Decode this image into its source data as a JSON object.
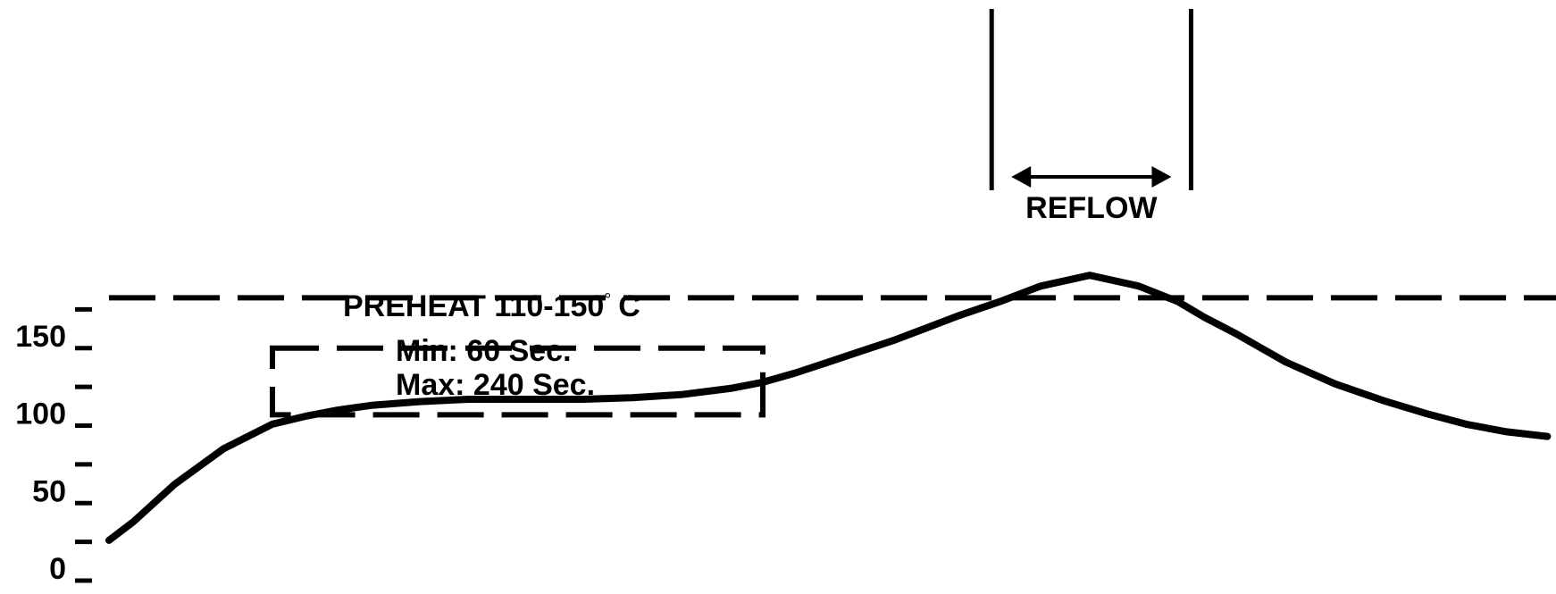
{
  "chart_data": {
    "type": "line",
    "title": "",
    "xlabel": "",
    "ylabel": "",
    "ylim": [
      0,
      190
    ],
    "y_ticks": [
      {
        "value": 0,
        "label": "0"
      },
      {
        "value": 25,
        "label": ""
      },
      {
        "value": 50,
        "label": "50"
      },
      {
        "value": 75,
        "label": ""
      },
      {
        "value": 100,
        "label": "100"
      },
      {
        "value": 125,
        "label": ""
      },
      {
        "value": 150,
        "label": "150"
      },
      {
        "value": 175,
        "label": ""
      }
    ],
    "grid": false,
    "series": [
      {
        "x": [
          0,
          15,
          40,
          70,
          100,
          120,
          140,
          160,
          190,
          220,
          260,
          290,
          320,
          350,
          380,
          400,
          420,
          440,
          460,
          480,
          500,
          520,
          545,
          570,
          600,
          630,
          654,
          670,
          690,
          705,
          720,
          750,
          780,
          805,
          830,
          855,
          880
        ],
        "y": [
          26,
          38,
          62,
          85,
          101,
          106,
          110,
          113,
          115.5,
          117,
          117,
          117,
          118,
          120,
          124,
          128,
          134,
          141,
          148,
          155,
          163,
          171,
          180,
          190,
          197,
          190,
          180,
          170,
          159,
          150,
          141,
          127,
          116,
          108,
          101,
          96,
          93
        ],
        "color": "#000000"
      }
    ],
    "reference_line": {
      "y": 182.5,
      "style": "dashed"
    },
    "preheat_zone": {
      "x": [
        100,
        400
      ],
      "y": [
        107,
        150
      ],
      "label": "PREHEAT  110-150",
      "degree": "°",
      "unit": "C",
      "min_label": "Min:  60  Sec.",
      "max_label": "Max:  240  Sec."
    },
    "reflow_zone": {
      "x": [
        540,
        662
      ],
      "label": "REFLOW"
    }
  }
}
